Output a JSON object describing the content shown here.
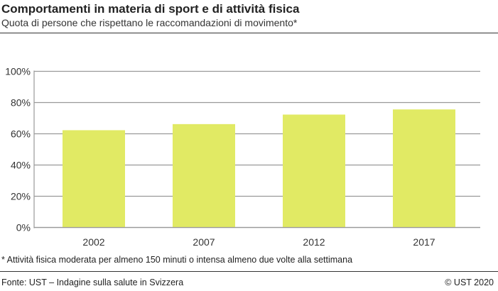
{
  "title": "Comportamenti in materia di sport e di attività fisica",
  "subtitle": "Quota di persone che rispettano le raccomandazioni di movimento*",
  "footnote": "* Attività fisica moderata per almeno 150 minuti o intensa almeno due volte alla settimana",
  "source": "Fonte: UST – Indagine sulla salute in Svizzera",
  "copyright": "© UST 2020",
  "chart_data": {
    "type": "bar",
    "categories": [
      "2002",
      "2007",
      "2012",
      "2017"
    ],
    "values": [
      62.3,
      66.2,
      72.3,
      75.6
    ],
    "ylim": [
      0,
      100
    ],
    "yticks": [
      "0%",
      "20%",
      "40%",
      "60%",
      "80%",
      "100%"
    ],
    "grid": true,
    "bar_color": "#e1ea64"
  }
}
